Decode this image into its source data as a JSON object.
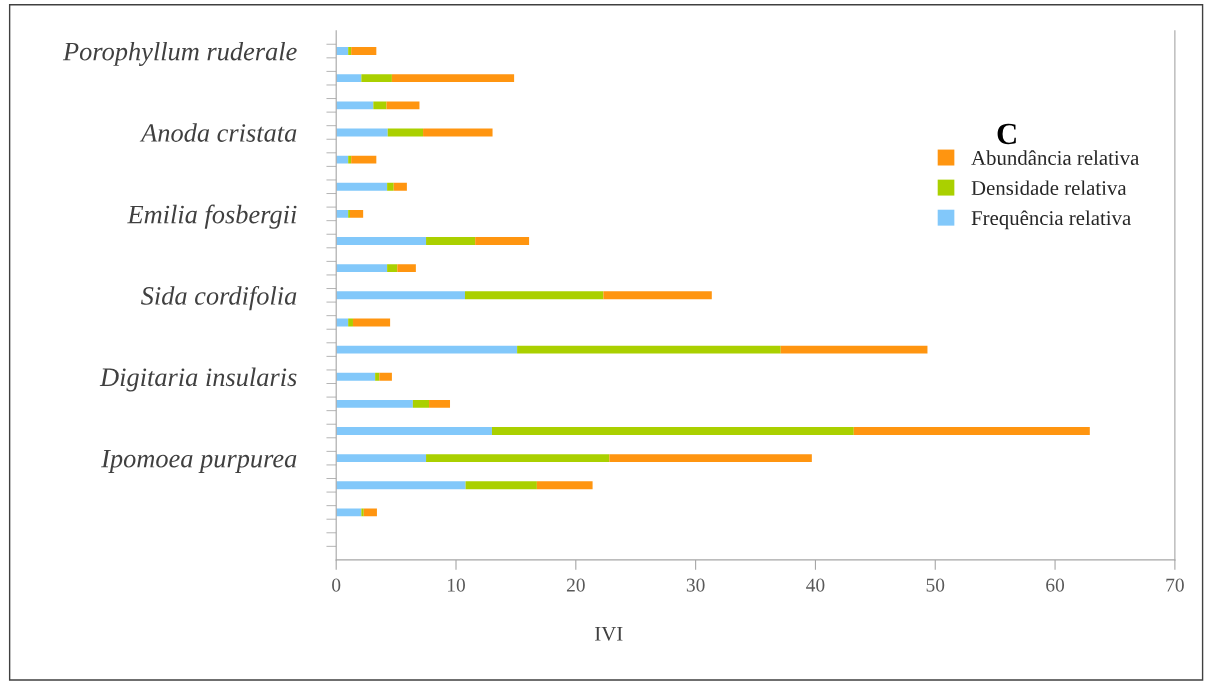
{
  "chart_data": {
    "type": "bar",
    "orientation": "horizontal",
    "stacked": true,
    "categories": [
      "Porophyllum ruderale",
      null,
      null,
      "Anoda cristata",
      null,
      null,
      "Emilia fosbergii",
      null,
      null,
      "Sida cordifolia",
      null,
      null,
      "Digitaria insularis",
      null,
      null,
      "Ipomoea purpurea",
      null,
      null,
      null
    ],
    "series": [
      {
        "name": "Frequência relativa",
        "color": "#82c8fa",
        "values": [
          1.0,
          2.1,
          3.1,
          4.3,
          1.0,
          4.25,
          1.0,
          7.5,
          4.25,
          10.75,
          1.0,
          15.1,
          3.25,
          6.4,
          13.0,
          7.5,
          10.8,
          2.1,
          null
        ]
      },
      {
        "name": "Densidade relativa",
        "color": "#aad000",
        "values": [
          0.25,
          2.55,
          1.1,
          2.95,
          0.25,
          0.55,
          0.15,
          4.1,
          0.85,
          11.55,
          0.4,
          22.0,
          0.35,
          1.35,
          30.2,
          15.3,
          5.95,
          0.2,
          null
        ]
      },
      {
        "name": "Abundância relativa",
        "color": "#ff9510",
        "values": [
          2.1,
          10.2,
          2.75,
          5.8,
          2.1,
          1.1,
          1.1,
          4.5,
          1.55,
          9.05,
          3.1,
          12.25,
          1.05,
          1.75,
          19.7,
          16.9,
          4.65,
          1.1,
          null
        ]
      }
    ],
    "xlabel": "IVI",
    "xlim": [
      0,
      70
    ],
    "xticks": [
      0,
      10,
      20,
      30,
      40,
      50,
      60,
      70
    ],
    "annotations": [
      "C"
    ],
    "legend": "right",
    "grid": false
  }
}
